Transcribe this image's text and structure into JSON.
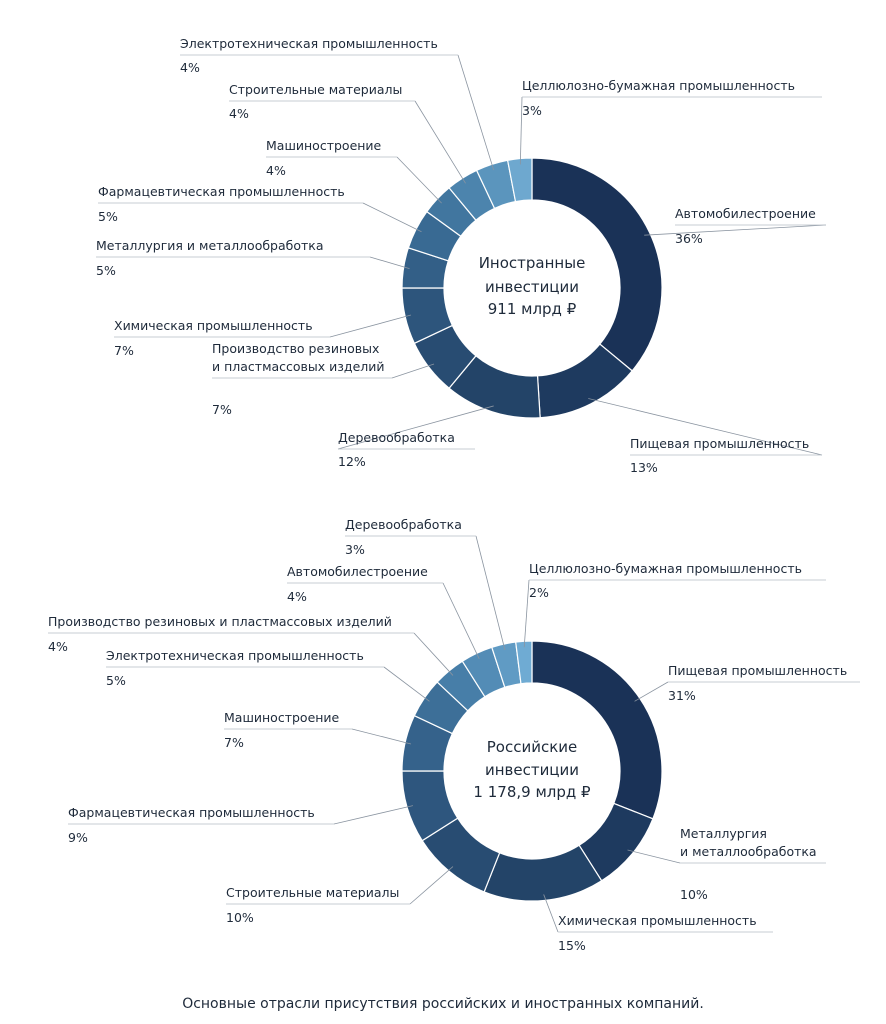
{
  "caption": "Основные отрасли присутствия российских и иностранных компаний.",
  "chart_data": [
    {
      "type": "donut",
      "center_lines": [
        "Иностранные",
        "инвестиции",
        "911 млрд ₽"
      ],
      "unit": "%",
      "slices": [
        {
          "label": [
            "Автомобилестроение"
          ],
          "value": 36,
          "display": "36%",
          "color": "#1a3257"
        },
        {
          "label": [
            "Пищевая промышленность"
          ],
          "value": 13,
          "display": "13%",
          "color": "#1e3a5f"
        },
        {
          "label": [
            "Деревообработка"
          ],
          "value": 12,
          "display": "12%",
          "color": "#234468"
        },
        {
          "label": [
            "Производство резиновых",
            "и пластмассовых изделий"
          ],
          "value": 7,
          "display": "7%",
          "color": "#284c72"
        },
        {
          "label": [
            "Химическая промышленность"
          ],
          "value": 7,
          "display": "7%",
          "color": "#2d557c"
        },
        {
          "label": [
            "Металлургия и металлообработка"
          ],
          "value": 5,
          "display": "5%",
          "color": "#335f87"
        },
        {
          "label": [
            "Фармацевтическая промышленность"
          ],
          "value": 5,
          "display": "5%",
          "color": "#396a93"
        },
        {
          "label": [
            "Машиностроение"
          ],
          "value": 4,
          "display": "4%",
          "color": "#41769f"
        },
        {
          "label": [
            "Строительные материалы"
          ],
          "value": 4,
          "display": "4%",
          "color": "#4c84ad"
        },
        {
          "label": [
            "Электротехническая промышленность"
          ],
          "value": 4,
          "display": "4%",
          "color": "#5b95bd"
        },
        {
          "label": [
            "Целлюлозно-бумажная промышленность"
          ],
          "value": 3,
          "display": "3%",
          "color": "#6ea8cf"
        }
      ]
    },
    {
      "type": "donut",
      "center_lines": [
        "Российские",
        "инвестиции",
        "1 178,9 млрд ₽"
      ],
      "unit": "%",
      "slices": [
        {
          "label": [
            "Пищевая промышленность"
          ],
          "value": 31,
          "display": "31%",
          "color": "#1a3257"
        },
        {
          "label": [
            "Металлургия",
            "и металлообработка"
          ],
          "value": 10,
          "display": "10%",
          "color": "#1e3a5f"
        },
        {
          "label": [
            "Химическая промышленность"
          ],
          "value": 15,
          "display": "15%",
          "color": "#234468"
        },
        {
          "label": [
            "Строительные материалы"
          ],
          "value": 10,
          "display": "10%",
          "color": "#284c72"
        },
        {
          "label": [
            "Фармацевтическая промышленность"
          ],
          "value": 9,
          "display": "9%",
          "color": "#2e567e"
        },
        {
          "label": [
            "Машиностроение"
          ],
          "value": 7,
          "display": "7%",
          "color": "#35628b"
        },
        {
          "label": [
            "Электротехническая промышленность"
          ],
          "value": 5,
          "display": "5%",
          "color": "#3d6f98"
        },
        {
          "label": [
            "Производство резиновых и пластмассовых изделий"
          ],
          "value": 4,
          "display": "4%",
          "color": "#477ea8"
        },
        {
          "label": [
            "Автомобилестроение"
          ],
          "value": 4,
          "display": "4%",
          "color": "#538cb6"
        },
        {
          "label": [
            "Деревообработка"
          ],
          "value": 3,
          "display": "3%",
          "color": "#609bc4"
        },
        {
          "label": [
            "Целлюлозно-бумажная промышленность"
          ],
          "value": 2,
          "display": "2%",
          "color": "#6fabd3"
        }
      ]
    }
  ]
}
